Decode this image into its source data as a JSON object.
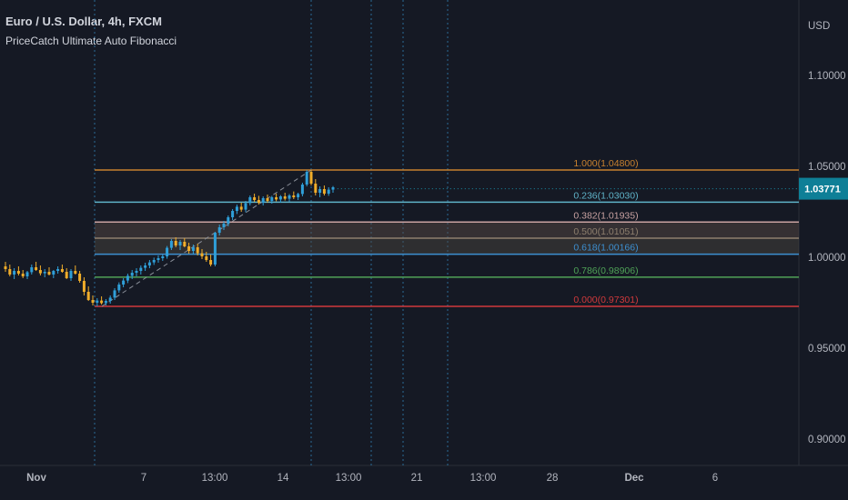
{
  "header": {
    "symbol": "Euro / U.S. Dollar, 4h, FXCM",
    "indicator": "PriceCatch Ultimate Auto Fibonacci"
  },
  "chart_data": {
    "type": "candlestick",
    "currency_label": "USD",
    "y_ticks": [
      "1.10000",
      "1.05000",
      "1.00000",
      "0.95000",
      "0.90000"
    ],
    "x_ticks": [
      "Nov",
      "7",
      "13:00",
      "14",
      "13:00",
      "21",
      "13:00",
      "28",
      "Dec",
      "6"
    ],
    "last_price": "1.03771",
    "last_price_value": 1.03771,
    "fib_levels": [
      {
        "label": "1.000(1.04800)",
        "value": 1.048,
        "color": "#c7802f"
      },
      {
        "label": "0.236(1.03030)",
        "value": 1.0303,
        "color": "#5fb3c8"
      },
      {
        "label": "0.382(1.01935)",
        "value": 1.01935,
        "color": "#c9a2a2"
      },
      {
        "label": "0.500(1.01051)",
        "value": 1.01051,
        "color": "#8d7f6e"
      },
      {
        "label": "0.618(1.00166)",
        "value": 1.00166,
        "color": "#3d8fd0"
      },
      {
        "label": "0.786(0.98906)",
        "value": 0.98906,
        "color": "#4fa257"
      },
      {
        "label": "0.000(0.97301)",
        "value": 0.97301,
        "color": "#d0393c"
      }
    ],
    "candles": [
      {
        "o": 0.995,
        "h": 0.9975,
        "l": 0.992,
        "c": 0.9935
      },
      {
        "o": 0.9935,
        "h": 0.996,
        "l": 0.9895,
        "c": 0.9905
      },
      {
        "o": 0.9905,
        "h": 0.994,
        "l": 0.988,
        "c": 0.9925
      },
      {
        "o": 0.9925,
        "h": 0.995,
        "l": 0.99,
        "c": 0.991
      },
      {
        "o": 0.991,
        "h": 0.993,
        "l": 0.9885,
        "c": 0.9895
      },
      {
        "o": 0.9895,
        "h": 0.9925,
        "l": 0.988,
        "c": 0.9918
      },
      {
        "o": 0.9918,
        "h": 0.996,
        "l": 0.9905,
        "c": 0.9945
      },
      {
        "o": 0.9945,
        "h": 0.9975,
        "l": 0.9925,
        "c": 0.993
      },
      {
        "o": 0.993,
        "h": 0.9955,
        "l": 0.99,
        "c": 0.9912
      },
      {
        "o": 0.9912,
        "h": 0.9935,
        "l": 0.989,
        "c": 0.992
      },
      {
        "o": 0.992,
        "h": 0.9945,
        "l": 0.99,
        "c": 0.9905
      },
      {
        "o": 0.9905,
        "h": 0.993,
        "l": 0.9885,
        "c": 0.9925
      },
      {
        "o": 0.9925,
        "h": 0.995,
        "l": 0.991,
        "c": 0.9935
      },
      {
        "o": 0.9935,
        "h": 0.996,
        "l": 0.9915,
        "c": 0.992
      },
      {
        "o": 0.992,
        "h": 0.994,
        "l": 0.988,
        "c": 0.9885
      },
      {
        "o": 0.9885,
        "h": 0.9935,
        "l": 0.987,
        "c": 0.9925
      },
      {
        "o": 0.9925,
        "h": 0.9955,
        "l": 0.9905,
        "c": 0.991
      },
      {
        "o": 0.991,
        "h": 0.9925,
        "l": 0.986,
        "c": 0.987
      },
      {
        "o": 0.987,
        "h": 0.989,
        "l": 0.979,
        "c": 0.981
      },
      {
        "o": 0.981,
        "h": 0.984,
        "l": 0.976,
        "c": 0.9765
      },
      {
        "o": 0.9765,
        "h": 0.979,
        "l": 0.9735,
        "c": 0.975
      },
      {
        "o": 0.975,
        "h": 0.9775,
        "l": 0.973,
        "c": 0.9762
      },
      {
        "o": 0.9762,
        "h": 0.9785,
        "l": 0.974,
        "c": 0.9748
      },
      {
        "o": 0.9748,
        "h": 0.977,
        "l": 0.9735,
        "c": 0.976
      },
      {
        "o": 0.976,
        "h": 0.979,
        "l": 0.9745,
        "c": 0.9778
      },
      {
        "o": 0.9778,
        "h": 0.983,
        "l": 0.9765,
        "c": 0.9818
      },
      {
        "o": 0.9818,
        "h": 0.9862,
        "l": 0.9805,
        "c": 0.985
      },
      {
        "o": 0.985,
        "h": 0.9885,
        "l": 0.9835,
        "c": 0.9872
      },
      {
        "o": 0.9872,
        "h": 0.991,
        "l": 0.9858,
        "c": 0.9898
      },
      {
        "o": 0.9898,
        "h": 0.993,
        "l": 0.988,
        "c": 0.9915
      },
      {
        "o": 0.9915,
        "h": 0.994,
        "l": 0.9895,
        "c": 0.9925
      },
      {
        "o": 0.9925,
        "h": 0.9955,
        "l": 0.9905,
        "c": 0.9942
      },
      {
        "o": 0.9942,
        "h": 0.997,
        "l": 0.9925,
        "c": 0.9955
      },
      {
        "o": 0.9955,
        "h": 0.9985,
        "l": 0.994,
        "c": 0.9972
      },
      {
        "o": 0.9972,
        "h": 0.9998,
        "l": 0.9958,
        "c": 0.9985
      },
      {
        "o": 0.9985,
        "h": 1.001,
        "l": 0.997,
        "c": 0.9995
      },
      {
        "o": 0.9995,
        "h": 1.0015,
        "l": 0.998,
        "c": 1.0005
      },
      {
        "o": 1.0005,
        "h": 1.0062,
        "l": 0.9992,
        "c": 1.0052
      },
      {
        "o": 1.0052,
        "h": 1.01,
        "l": 1.004,
        "c": 1.009
      },
      {
        "o": 1.009,
        "h": 1.011,
        "l": 1.0055,
        "c": 1.0065
      },
      {
        "o": 1.0065,
        "h": 1.0095,
        "l": 1.004,
        "c": 1.0085
      },
      {
        "o": 1.0085,
        "h": 1.0105,
        "l": 1.0055,
        "c": 1.006
      },
      {
        "o": 1.006,
        "h": 1.008,
        "l": 1.002,
        "c": 1.0035
      },
      {
        "o": 1.0035,
        "h": 1.007,
        "l": 1.0015,
        "c": 1.0055
      },
      {
        "o": 1.0055,
        "h": 1.0075,
        "l": 1.001,
        "c": 1.0022
      },
      {
        "o": 1.0022,
        "h": 1.0045,
        "l": 0.999,
        "c": 1.0005
      },
      {
        "o": 1.0005,
        "h": 1.003,
        "l": 0.9975,
        "c": 0.9985
      },
      {
        "o": 0.9985,
        "h": 1.0015,
        "l": 0.995,
        "c": 0.996
      },
      {
        "o": 0.996,
        "h": 1.014,
        "l": 0.995,
        "c": 1.0135
      },
      {
        "o": 1.0135,
        "h": 1.018,
        "l": 1.012,
        "c": 1.0165
      },
      {
        "o": 1.0165,
        "h": 1.02,
        "l": 1.015,
        "c": 1.0185
      },
      {
        "o": 1.0185,
        "h": 1.023,
        "l": 1.017,
        "c": 1.022
      },
      {
        "o": 1.022,
        "h": 1.0265,
        "l": 1.0205,
        "c": 1.0255
      },
      {
        "o": 1.0255,
        "h": 1.029,
        "l": 1.0238,
        "c": 1.0278
      },
      {
        "o": 1.0278,
        "h": 1.03,
        "l": 1.025,
        "c": 1.0262
      },
      {
        "o": 1.0262,
        "h": 1.031,
        "l": 1.0248,
        "c": 1.0298
      },
      {
        "o": 1.0298,
        "h": 1.034,
        "l": 1.0285,
        "c": 1.033
      },
      {
        "o": 1.033,
        "h": 1.035,
        "l": 1.0305,
        "c": 1.0315
      },
      {
        "o": 1.0315,
        "h": 1.0338,
        "l": 1.029,
        "c": 1.03
      },
      {
        "o": 1.03,
        "h": 1.0335,
        "l": 1.0285,
        "c": 1.0325
      },
      {
        "o": 1.0325,
        "h": 1.0345,
        "l": 1.03,
        "c": 1.031
      },
      {
        "o": 1.031,
        "h": 1.0338,
        "l": 1.0295,
        "c": 1.033
      },
      {
        "o": 1.033,
        "h": 1.035,
        "l": 1.0308,
        "c": 1.0318
      },
      {
        "o": 1.0318,
        "h": 1.0342,
        "l": 1.03,
        "c": 1.0335
      },
      {
        "o": 1.0335,
        "h": 1.0355,
        "l": 1.0312,
        "c": 1.0322
      },
      {
        "o": 1.0322,
        "h": 1.0348,
        "l": 1.0305,
        "c": 1.034
      },
      {
        "o": 1.034,
        "h": 1.0362,
        "l": 1.032,
        "c": 1.033
      },
      {
        "o": 1.033,
        "h": 1.0355,
        "l": 1.0315,
        "c": 1.0348
      },
      {
        "o": 1.0348,
        "h": 1.041,
        "l": 1.0335,
        "c": 1.04
      },
      {
        "o": 1.04,
        "h": 1.048,
        "l": 1.039,
        "c": 1.047
      },
      {
        "o": 1.047,
        "h": 1.048,
        "l": 1.0395,
        "c": 1.0405
      },
      {
        "o": 1.0405,
        "h": 1.043,
        "l": 1.034,
        "c": 1.0355
      },
      {
        "o": 1.0355,
        "h": 1.039,
        "l": 1.033,
        "c": 1.0375
      },
      {
        "o": 1.0375,
        "h": 1.0395,
        "l": 1.034,
        "c": 1.035
      },
      {
        "o": 1.035,
        "h": 1.0385,
        "l": 1.0338,
        "c": 1.0372
      },
      {
        "o": 1.0372,
        "h": 1.0392,
        "l": 1.0355,
        "c": 1.0385
      }
    ]
  }
}
